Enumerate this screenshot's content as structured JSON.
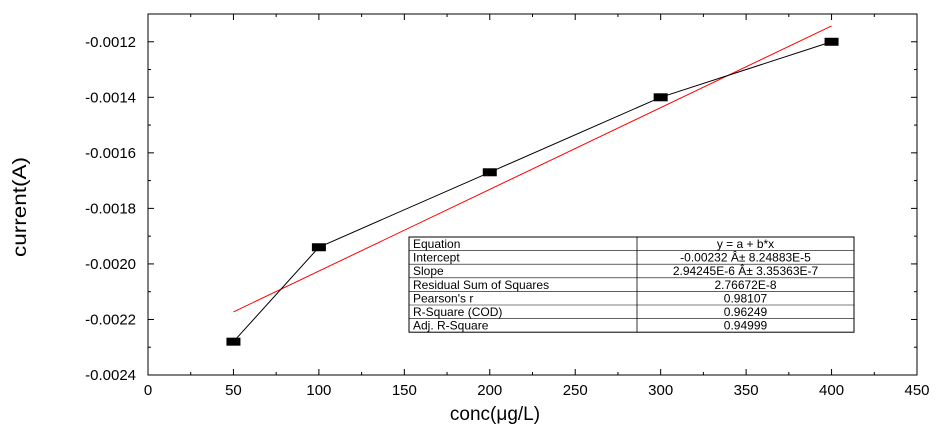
{
  "chart_data": {
    "type": "line",
    "xlabel": "conc(μg/L)",
    "ylabel": "current(A)",
    "xlim": [
      0,
      450
    ],
    "ylim": [
      -0.0024,
      -0.0011
    ],
    "xticks": [
      0,
      50,
      100,
      150,
      200,
      250,
      300,
      350,
      400,
      450
    ],
    "xtick_labels": [
      "0",
      "50",
      "100",
      "150",
      "200",
      "250",
      "300",
      "350",
      "400",
      "450"
    ],
    "yticks": [
      -0.0024,
      -0.0022,
      -0.002,
      -0.0018,
      -0.0016,
      -0.0014,
      -0.0012
    ],
    "ytick_labels": [
      "-0.0024",
      "-0.0022",
      "-0.0020",
      "-0.0018",
      "-0.0016",
      "-0.0014",
      "-0.0012"
    ],
    "grid": false,
    "series": [
      {
        "style": "line+square-markers",
        "color": "#000000",
        "x": [
          50,
          100,
          200,
          300,
          400
        ],
        "y": [
          -0.00228,
          -0.00194,
          -0.00167,
          -0.0014,
          -0.0012
        ]
      },
      {
        "style": "fit-line",
        "color": "#ff0000",
        "intercept": -0.00232,
        "slope": 2.94245e-06,
        "x_range": [
          50,
          400
        ]
      }
    ],
    "stats_table": [
      [
        "Equation",
        "y = a + b*x"
      ],
      [
        "Intercept",
        "-0.00232 Â± 8.24883E-5"
      ],
      [
        "Slope",
        "2.94245E-6 Â± 3.35363E-7"
      ],
      [
        "Residual Sum of Squares",
        "2.76672E-8"
      ],
      [
        "Pearson's r",
        "0.98107"
      ],
      [
        "R-Square (COD)",
        "0.96249"
      ],
      [
        "Adj. R-Square",
        "0.94999"
      ]
    ]
  }
}
